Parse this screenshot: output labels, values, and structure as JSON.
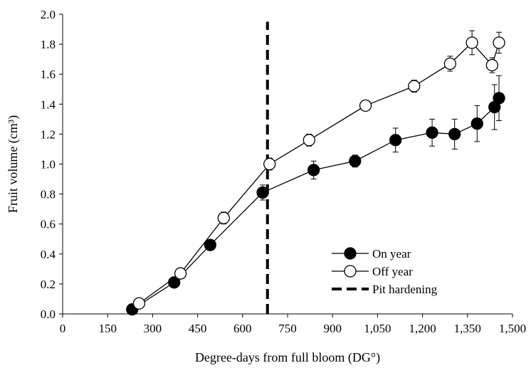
{
  "chart_data": {
    "type": "scatter",
    "title": "",
    "xlabel": "Degree-days from full bloom (DG°)",
    "ylabel": "Fruit volume (cm³)",
    "xlim": [
      0,
      1500
    ],
    "ylim": [
      0,
      2.0
    ],
    "x_ticks": [
      0,
      150,
      300,
      450,
      600,
      750,
      900,
      1050,
      1200,
      1350,
      1500
    ],
    "x_tick_labels": [
      "0",
      "150",
      "300",
      "450",
      "600",
      "750",
      "900",
      "1,050",
      "1,200",
      "1,350",
      "1,500"
    ],
    "y_ticks": [
      0,
      0.2,
      0.4,
      0.6,
      0.8,
      1.0,
      1.2,
      1.4,
      1.6,
      1.8,
      2.0
    ],
    "y_tick_labels": [
      "0.0",
      "0.2",
      "0.4",
      "0.6",
      "0.8",
      "1.0",
      "1.2",
      "1.4",
      "1.6",
      "1.8",
      "2.0"
    ],
    "grid": false,
    "legend_position": "bottom-right",
    "series": [
      {
        "name": "On year",
        "marker": "filled-circle",
        "color": "#000000",
        "x": [
          232,
          372,
          492,
          667,
          837,
          975,
          1110,
          1232,
          1307,
          1382,
          1440,
          1455
        ],
        "y": [
          0.03,
          0.21,
          0.46,
          0.81,
          0.96,
          1.02,
          1.16,
          1.21,
          1.2,
          1.27,
          1.38,
          1.44
        ],
        "error": [
          0.0,
          0.02,
          0.02,
          0.05,
          0.06,
          0.04,
          0.08,
          0.09,
          0.1,
          0.12,
          0.15,
          0.15
        ]
      },
      {
        "name": "Off year",
        "marker": "open-circle",
        "color": "#000000",
        "x": [
          255,
          393,
          537,
          690,
          822,
          1010,
          1172,
          1292,
          1365,
          1432,
          1455
        ],
        "y": [
          0.07,
          0.27,
          0.64,
          1.0,
          1.16,
          1.39,
          1.52,
          1.67,
          1.81,
          1.66,
          1.81
        ],
        "error": [
          0.0,
          0.02,
          0.04,
          0.04,
          0.04,
          0.02,
          0.04,
          0.05,
          0.08,
          0.05,
          0.07
        ]
      }
    ],
    "reference_line": {
      "name": "Pit hardening",
      "style": "dashed",
      "x": 683,
      "y_range": [
        0,
        1.95
      ]
    }
  }
}
